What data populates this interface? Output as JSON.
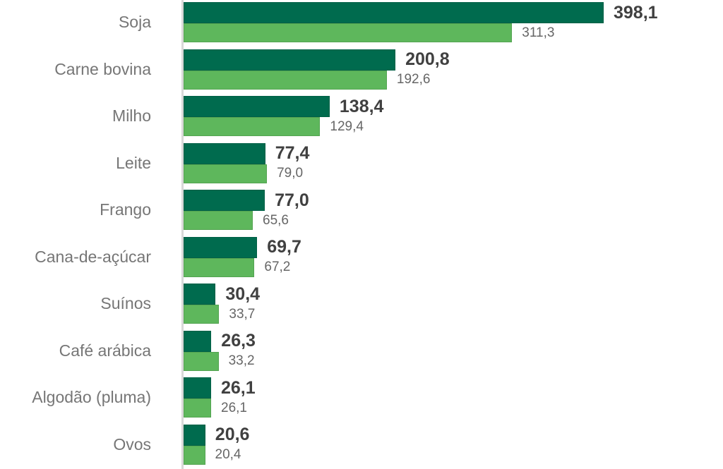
{
  "colors": {
    "background": "#ffffff",
    "axis_line": "#d9d9d9",
    "category_label": "#767676",
    "value_label_dark": "#404040",
    "value_label_light": "#666666",
    "series_dark": "#006B4E",
    "series_light": "#5EB75C"
  },
  "chart_data": {
    "type": "bar",
    "orientation": "horizontal",
    "title": "",
    "xlabel": "",
    "ylabel": "",
    "xlim": [
      0,
      410
    ],
    "grid": "off",
    "legend": "none",
    "value_labels": "end-of-bar",
    "decimal_separator": ",",
    "categories": [
      "Soja",
      "Carne bovina",
      "Milho",
      "Leite",
      "Frango",
      "Cana-de-açúcar",
      "Suínos",
      "Café arábica",
      "Algodão (pluma)",
      "Ovos"
    ],
    "series": [
      {
        "name": "dark-green",
        "color": "#006B4E",
        "values": [
          398.1,
          200.8,
          138.4,
          77.4,
          77.0,
          69.7,
          30.4,
          26.3,
          26.1,
          20.6
        ],
        "labels": [
          "398,1",
          "200,8",
          "138,4",
          "77,4",
          "77,0",
          "69,7",
          "30,4",
          "26,3",
          "26,1",
          "20,6"
        ]
      },
      {
        "name": "light-green",
        "color": "#5EB75C",
        "values": [
          311.3,
          192.6,
          129.4,
          79.0,
          65.6,
          67.2,
          33.7,
          33.2,
          26.1,
          20.4
        ],
        "labels": [
          "311,3",
          "192,6",
          "129,4",
          "79,0",
          "65,6",
          "67,2",
          "33,7",
          "33,2",
          "26,1",
          "20,4"
        ]
      }
    ]
  }
}
